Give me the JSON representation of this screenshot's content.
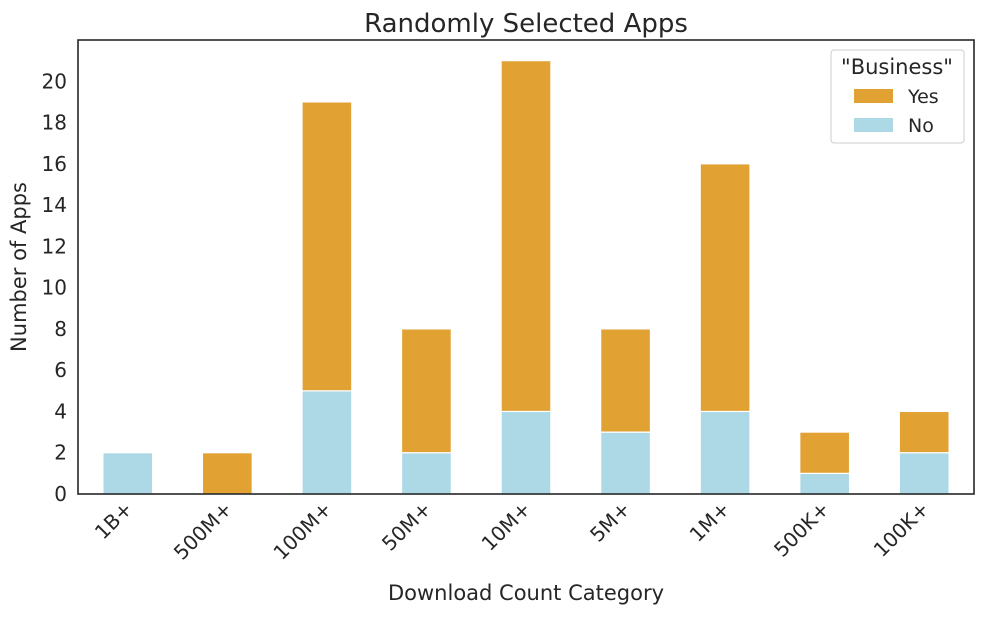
{
  "chart_data": {
    "type": "bar",
    "stacked": true,
    "title": "Randomly Selected Apps",
    "xlabel": "Download Count Category",
    "ylabel": "Number of Apps",
    "categories": [
      "1B+",
      "500M+",
      "100M+",
      "50M+",
      "10M+",
      "5M+",
      "1M+",
      "500K+",
      "100K+"
    ],
    "series": [
      {
        "name": "No",
        "color": "#add8e6",
        "values": [
          2,
          0,
          5,
          2,
          4,
          3,
          4,
          1,
          2
        ]
      },
      {
        "name": "Yes",
        "color": "#e1a133",
        "values": [
          0,
          2,
          14,
          6,
          17,
          5,
          12,
          2,
          2
        ]
      }
    ],
    "ylim": [
      0,
      22
    ],
    "yticks": [
      0,
      2,
      4,
      6,
      8,
      10,
      12,
      14,
      16,
      18,
      20
    ],
    "grid": false,
    "legend": {
      "title": "\"Business\"",
      "placement": "top-right",
      "entries": [
        "Yes",
        "No"
      ]
    }
  }
}
